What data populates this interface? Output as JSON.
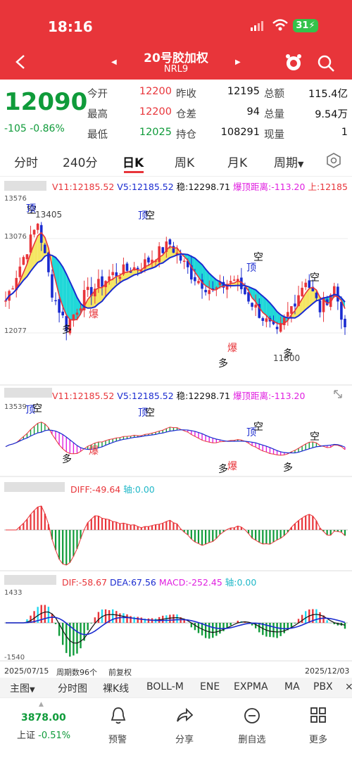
{
  "status_bar": {
    "time": "18:16",
    "battery": "31"
  },
  "header": {
    "title": "20号胶加权",
    "code": "NRL9"
  },
  "quote": {
    "price": "12090",
    "change": "-105",
    "change_pct": "-0.86%",
    "rows": [
      [
        {
          "label": "今开",
          "value": "12200",
          "color": "#e8353a"
        },
        {
          "label": "昨收",
          "value": "12195",
          "color": "#111"
        },
        {
          "label": "总额",
          "value": "115.4亿",
          "color": "#111"
        }
      ],
      [
        {
          "label": "最高",
          "value": "12200",
          "color": "#e8353a"
        },
        {
          "label": "仓差",
          "value": "94",
          "color": "#111"
        },
        {
          "label": "总量",
          "value": "9.54万",
          "color": "#111"
        }
      ],
      [
        {
          "label": "最低",
          "value": "12025",
          "color": "#0f9b3a"
        },
        {
          "label": "持仓",
          "value": "108291",
          "color": "#111"
        },
        {
          "label": "现量",
          "value": "1",
          "color": "#111"
        }
      ]
    ]
  },
  "tabs": [
    "分时",
    "240分",
    "日K",
    "周K",
    "月K",
    "周期"
  ],
  "active_tab": "日K",
  "indicator1": {
    "v11": "V11:12185.52",
    "v5": "V5:12185.52",
    "wen": "稳:12298.71",
    "bao": "爆顶距离:-113.20",
    "shang": "上:12185"
  },
  "indicator2": {
    "v11": "V11:12185.52",
    "v5": "V5:12185.52",
    "wen": "稳:12298.71",
    "bao": "爆顶距离:-113.20"
  },
  "main_axis": {
    "top": "13576",
    "mid": "13076",
    "low": "12077"
  },
  "sub_axis_top": "13539",
  "macd_axis": {
    "top": "1433",
    "bottom": "-1540"
  },
  "diff_line": {
    "diff": "DIFF:-49.64",
    "zhou": "轴:0.00"
  },
  "macd_line": {
    "diff": "DIF:-58.67",
    "dea": "DEA:67.56",
    "macd": "MACD:-252.45",
    "zhou": "轴:0.00"
  },
  "annotations": {
    "high_val": "13405",
    "low_val": "11800",
    "ding": "顶",
    "kong": "空",
    "duo": "多",
    "bao": "爆"
  },
  "footer_dates": {
    "start": "2025/07/15",
    "period": "周期数96个",
    "adjust": "前复权",
    "end": "2025/12/03"
  },
  "toolbar": [
    "主图",
    "分时图",
    "裸K线",
    "BOLL-M",
    "ENE",
    "EXPMA",
    "MA",
    "PBX"
  ],
  "index": {
    "value": "3878.00",
    "name": "上证",
    "change": "-0.51%"
  },
  "bottom_nav": [
    "预警",
    "分享",
    "删自选",
    "更多"
  ],
  "colors": {
    "red": "#e8353a",
    "green": "#0f9b3a",
    "cyan": "#20d8d8",
    "yellow": "#f5e663",
    "blue": "#1a2bd0",
    "magenta": "#e020e0"
  }
}
